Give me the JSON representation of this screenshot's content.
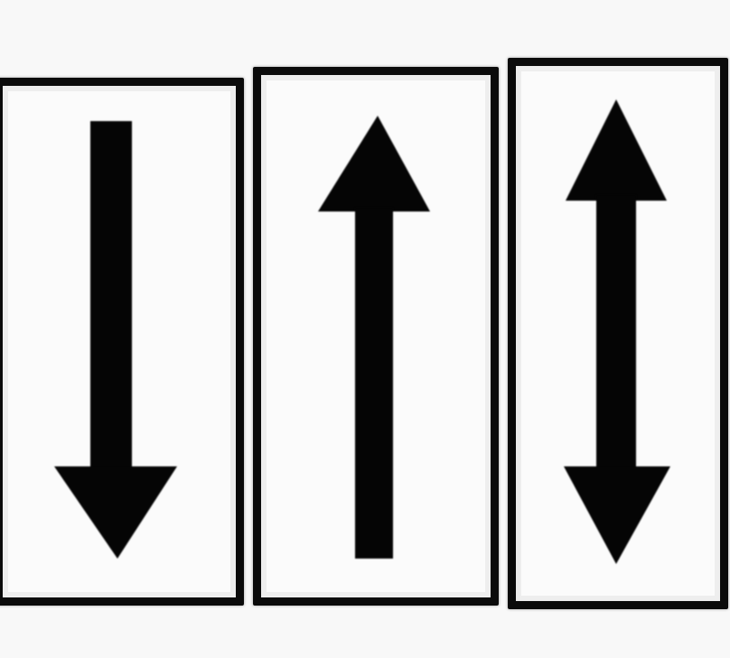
{
  "panels": [
    {
      "id": "down",
      "icon": "arrow-down-icon",
      "color": "#0b0b0b"
    },
    {
      "id": "up",
      "icon": "arrow-up-icon",
      "color": "#0b0b0b"
    },
    {
      "id": "both",
      "icon": "arrow-up-down-icon",
      "color": "#0b0b0b"
    }
  ],
  "background": "#f8f8f8",
  "panel_fill": "#fbfbfb"
}
